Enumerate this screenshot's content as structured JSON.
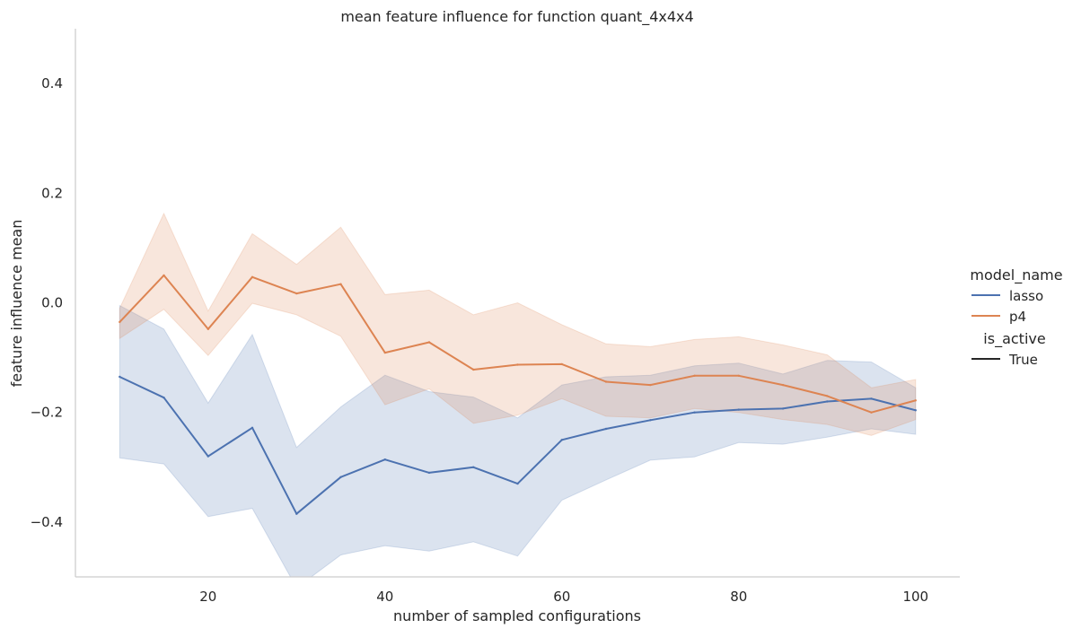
{
  "chart_data": {
    "type": "line",
    "title": "mean feature influence for function quant_4x4x4",
    "xlabel": "number of sampled configurations",
    "ylabel": "feature influence mean",
    "xlim": [
      5,
      105
    ],
    "ylim": [
      -0.5,
      0.5
    ],
    "xticks": [
      "20",
      "40",
      "60",
      "80",
      "100"
    ],
    "yticks": [
      "0.4",
      "0.2",
      "0.0",
      "−0.2",
      "−0.4"
    ],
    "xtick_values": [
      20,
      40,
      60,
      80,
      100
    ],
    "ytick_values": [
      0.4,
      0.2,
      0.0,
      -0.2,
      -0.4
    ],
    "grid": false,
    "legend_position": "right",
    "legend": {
      "title_hue": "model_name",
      "title_style": "is_active",
      "style_entry": "True"
    },
    "x": [
      10,
      15,
      20,
      25,
      30,
      35,
      40,
      45,
      50,
      55,
      60,
      65,
      70,
      75,
      80,
      85,
      90,
      95,
      100
    ],
    "series": [
      {
        "name": "lasso",
        "color": "#4c72b0",
        "values": [
          -0.135,
          -0.173,
          -0.28,
          -0.228,
          -0.385,
          -0.318,
          -0.286,
          -0.31,
          -0.3,
          -0.33,
          -0.25,
          -0.23,
          -0.214,
          -0.2,
          -0.195,
          -0.193,
          -0.18,
          -0.175,
          -0.196
        ],
        "ci_lower": [
          -0.283,
          -0.294,
          -0.39,
          -0.375,
          -0.52,
          -0.46,
          -0.443,
          -0.453,
          -0.436,
          -0.462,
          -0.36,
          -0.323,
          -0.287,
          -0.281,
          -0.255,
          -0.258,
          -0.245,
          -0.23,
          -0.24
        ],
        "ci_upper": [
          -0.005,
          -0.048,
          -0.183,
          -0.058,
          -0.264,
          -0.19,
          -0.132,
          -0.162,
          -0.172,
          -0.21,
          -0.15,
          -0.135,
          -0.132,
          -0.115,
          -0.11,
          -0.13,
          -0.105,
          -0.108,
          -0.155
        ]
      },
      {
        "name": "p4",
        "color": "#dd8452",
        "values": [
          -0.035,
          0.05,
          -0.048,
          0.047,
          0.017,
          0.034,
          -0.091,
          -0.072,
          -0.122,
          -0.113,
          -0.112,
          -0.144,
          -0.15,
          -0.133,
          -0.133,
          -0.15,
          -0.17,
          -0.2,
          -0.178
        ],
        "ci_lower": [
          -0.065,
          -0.012,
          -0.096,
          -0.001,
          -0.022,
          -0.061,
          -0.186,
          -0.157,
          -0.22,
          -0.205,
          -0.175,
          -0.207,
          -0.21,
          -0.193,
          -0.2,
          -0.213,
          -0.222,
          -0.242,
          -0.213
        ],
        "ci_upper": [
          -0.01,
          0.163,
          -0.015,
          0.126,
          0.07,
          0.138,
          0.015,
          0.023,
          -0.022,
          0.0,
          -0.04,
          -0.075,
          -0.08,
          -0.067,
          -0.062,
          -0.077,
          -0.095,
          -0.155,
          -0.14
        ]
      }
    ]
  }
}
